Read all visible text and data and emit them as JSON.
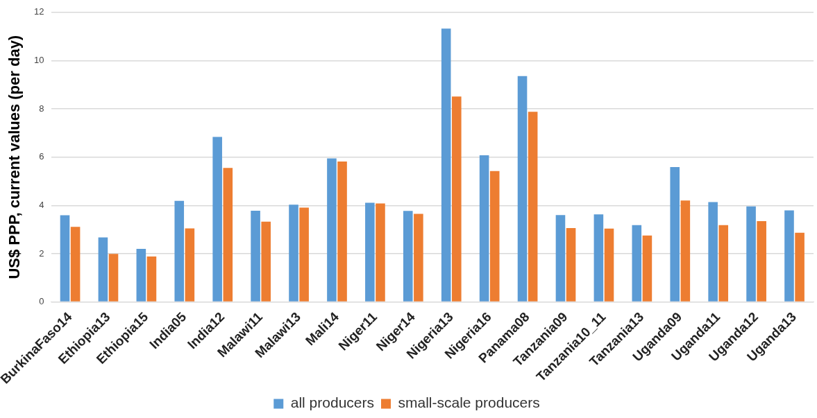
{
  "chart_data": {
    "type": "bar",
    "ylabel": "US$ PPP, current values (per day)",
    "categories": [
      "BurkinaFaso14",
      "Ethiopia13",
      "Ethiopia15",
      "India05",
      "India12",
      "Malawi11",
      "Malawi13",
      "Mali14",
      "Niger11",
      "Niger14",
      "Nigeria13",
      "Nigeria16",
      "Panama08",
      "Tanzania09",
      "Tanzania10_11",
      "Tanzania13",
      "Uganda09",
      "Uganda11",
      "Uganda12",
      "Uganda13"
    ],
    "series": [
      {
        "name": "all producers",
        "color": "#5b9bd5",
        "values": [
          3.59,
          2.67,
          2.2,
          4.19,
          6.84,
          3.78,
          4.03,
          5.95,
          4.11,
          3.77,
          11.33,
          6.08,
          9.36,
          3.6,
          3.63,
          3.18,
          5.59,
          4.14,
          3.96,
          3.79
        ]
      },
      {
        "name": "small-scale producers",
        "color": "#ed7d31",
        "values": [
          3.11,
          1.99,
          1.88,
          3.05,
          5.55,
          3.33,
          3.91,
          5.82,
          4.08,
          3.65,
          8.51,
          5.42,
          7.88,
          3.06,
          3.04,
          2.75,
          4.2,
          3.18,
          3.35,
          2.87
        ]
      }
    ],
    "ylim": [
      0,
      12
    ],
    "yticks": [
      0,
      2,
      4,
      6,
      8,
      10,
      12
    ],
    "grid": "y",
    "legend": "bottom"
  }
}
